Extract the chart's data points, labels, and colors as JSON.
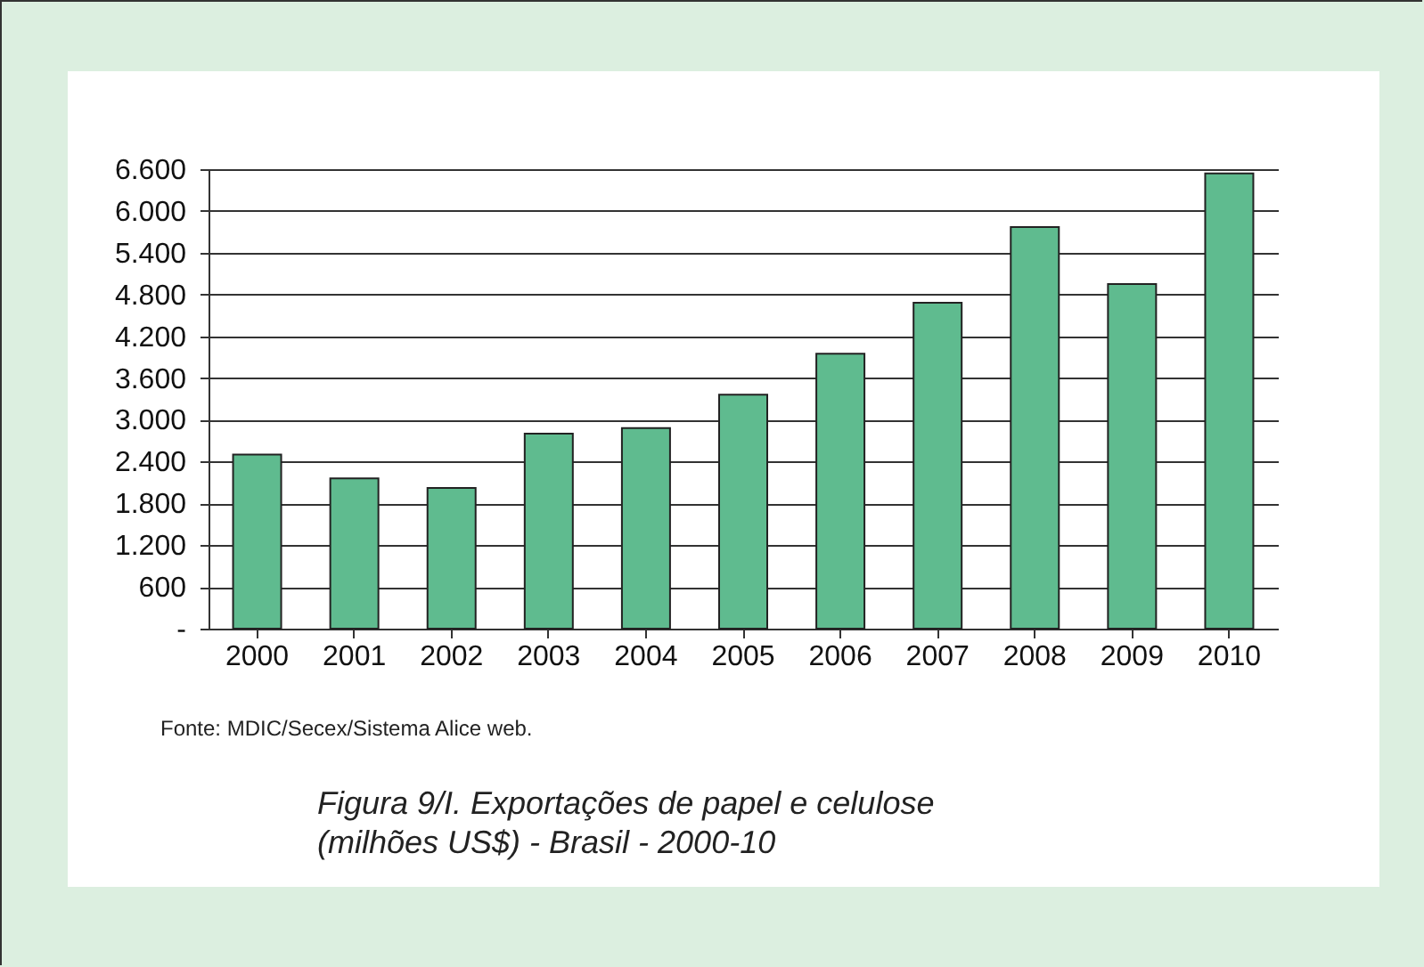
{
  "chart_data": {
    "type": "bar",
    "title": "Figura 9/I. Exportações de papel e celulose (milhões US$) - Brasil - 2000-10",
    "annotations": [
      "Fonte: MDIC/Secex/Sistema Alice web."
    ],
    "categories": [
      "2000",
      "2001",
      "2002",
      "2003",
      "2004",
      "2005",
      "2006",
      "2007",
      "2008",
      "2009",
      "2010"
    ],
    "values": [
      2500,
      2160,
      2020,
      2800,
      2880,
      3360,
      3950,
      4680,
      5770,
      4950,
      6540
    ],
    "color": "#5fbb8f",
    "ylim": [
      0,
      6600
    ],
    "yticks": [
      {
        "value": 0,
        "label": "-"
      },
      600,
      {
        "value": 1200,
        "label": "1.200"
      },
      {
        "value": 1800,
        "label": "1.800"
      },
      {
        "value": 2400,
        "label": "2.400"
      },
      {
        "value": 3000,
        "label": "3.000"
      },
      {
        "value": 3600,
        "label": "3.600"
      },
      {
        "value": 4200,
        "label": "4.200"
      },
      {
        "value": 4800,
        "label": "4.800"
      },
      {
        "value": 5400,
        "label": "5.400"
      },
      {
        "value": 6000,
        "label": "6.000"
      },
      {
        "value": 6600,
        "label": "6.600"
      }
    ],
    "grid": "y"
  }
}
